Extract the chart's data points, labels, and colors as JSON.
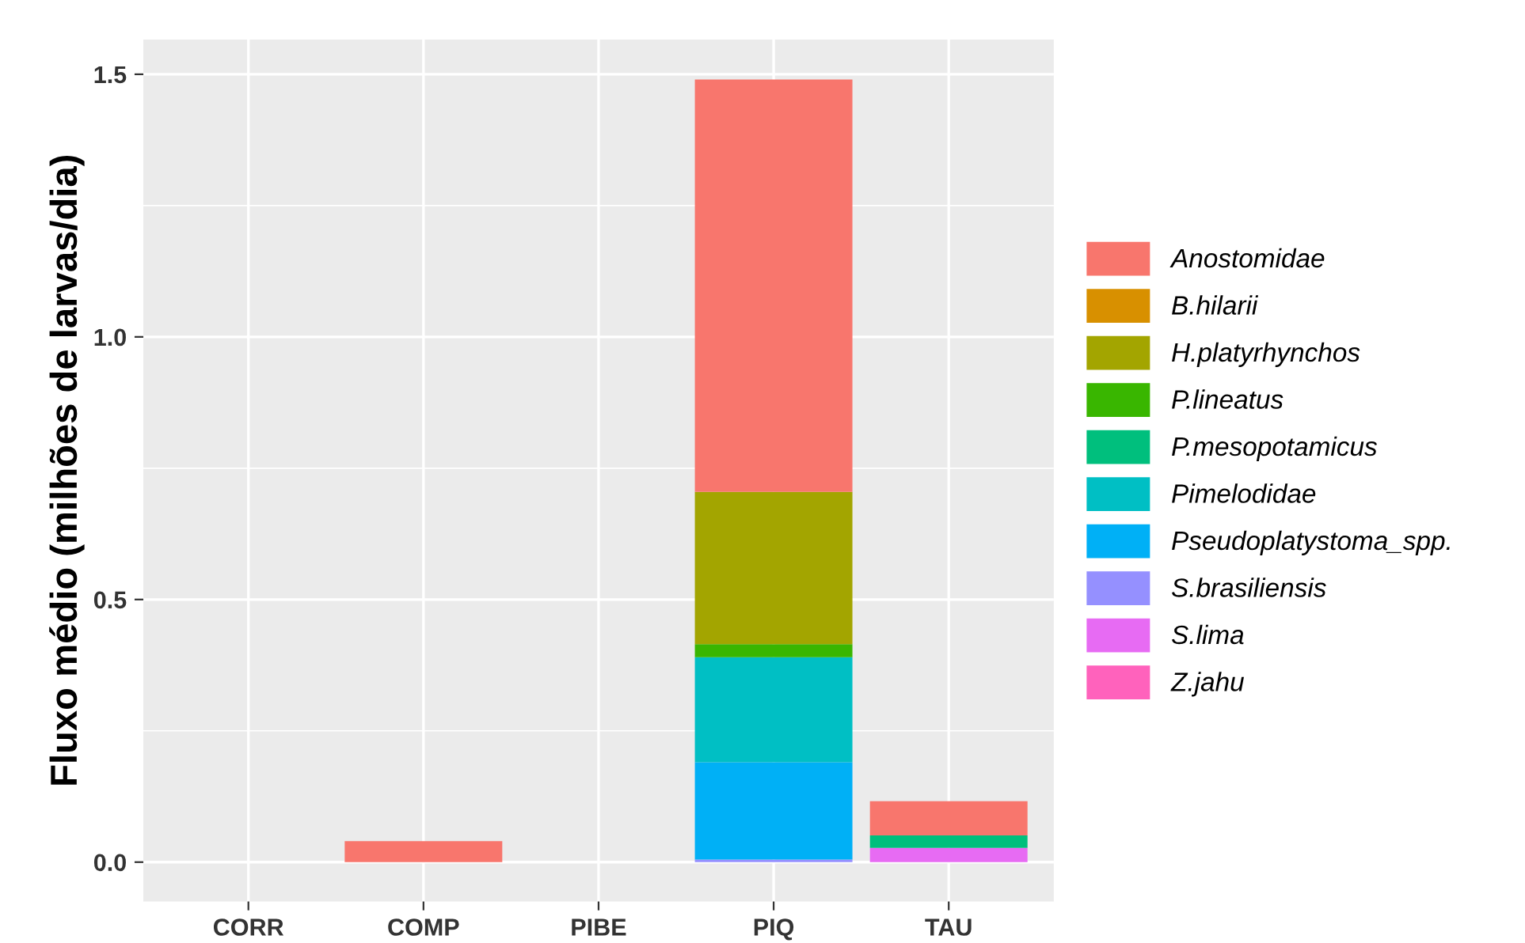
{
  "chart_data": {
    "type": "bar",
    "stacked": true,
    "ylabel": "Fluxo médio (milhões de larvas/dia)",
    "categories": [
      "CORR",
      "COMP",
      "PIBE",
      "PIQ",
      "TAU"
    ],
    "series": [
      {
        "name": "Z.jahu",
        "color": "#FF62BC",
        "values": [
          null,
          null,
          null,
          null,
          null
        ]
      },
      {
        "name": "S.lima",
        "color": "#E76BF3",
        "values": [
          null,
          null,
          null,
          null,
          0.027
        ]
      },
      {
        "name": "S.brasiliensis",
        "color": "#9590FF",
        "values": [
          null,
          null,
          null,
          0.005,
          null
        ]
      },
      {
        "name": "Pseudoplatystoma_spp.",
        "color": "#00B0F6",
        "values": [
          null,
          null,
          null,
          0.185,
          null
        ]
      },
      {
        "name": "Pimelodidae",
        "color": "#00BFC4",
        "values": [
          null,
          null,
          null,
          0.2,
          null
        ]
      },
      {
        "name": "P.mesopotamicus",
        "color": "#00BF7D",
        "values": [
          null,
          null,
          null,
          null,
          0.024
        ]
      },
      {
        "name": "P.lineatus",
        "color": "#39B600",
        "values": [
          null,
          null,
          null,
          0.025,
          null
        ]
      },
      {
        "name": "H.platyrhynchos",
        "color": "#A3A500",
        "values": [
          null,
          null,
          null,
          0.29,
          null
        ]
      },
      {
        "name": "B.hilarii",
        "color": "#D89000",
        "values": [
          null,
          null,
          null,
          null,
          null
        ]
      },
      {
        "name": "Anostomidae",
        "color": "#F8766D",
        "values": [
          null,
          0.04,
          null,
          0.785,
          0.065
        ]
      }
    ],
    "ylim": [
      -0.075,
      1.566
    ],
    "yticks": [
      {
        "value": 0,
        "label": "0.0"
      },
      {
        "value": 0.5,
        "label": "0.5"
      },
      {
        "value": 1,
        "label": "1.0"
      },
      {
        "value": 1.5,
        "label": "1.5"
      }
    ],
    "grid": true,
    "legend": "right"
  }
}
